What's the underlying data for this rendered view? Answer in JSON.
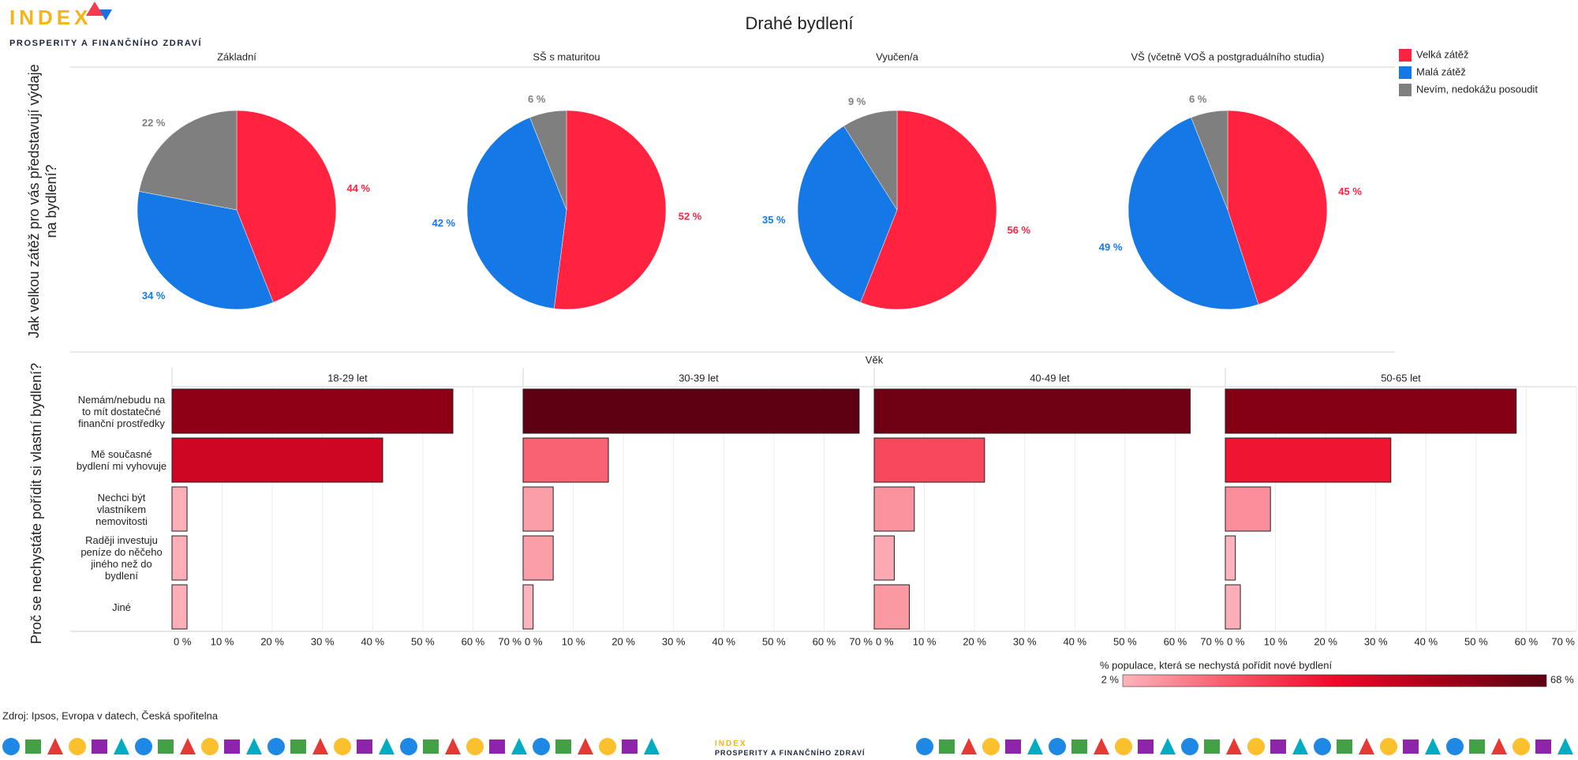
{
  "header": {
    "logo_title": "INDEX",
    "logo_subtitle": "PROSPERITY A FINANČNÍHO ZDRAVÍ",
    "title": "Drahé bydlení"
  },
  "chart_data": [
    {
      "type": "pie",
      "y_label": "Jak velkou zátěž pro vás představují výdaje na bydlení?",
      "legend": {
        "categories": [
          "Velká zátěž",
          "Malá zátěž",
          "Nevím, nedokážu posoudit"
        ],
        "colors": [
          "#ff2340",
          "#1479e6",
          "#7f7f7f"
        ]
      },
      "charts": [
        {
          "title": "Základní",
          "values": [
            44,
            34,
            22
          ],
          "value_labels": [
            "44 %",
            "34 %",
            "22 %"
          ]
        },
        {
          "title": "SŠ s maturitou",
          "values": [
            52,
            42,
            6
          ],
          "value_labels": [
            "52 %",
            "42 %",
            "6 %"
          ]
        },
        {
          "title": "Vyučen/a",
          "values": [
            56,
            35,
            9
          ],
          "value_labels": [
            "56 %",
            "35 %",
            "9 %"
          ]
        },
        {
          "title": "VŠ (včetně VOŠ a postgraduálního studia)",
          "values": [
            45,
            49,
            6
          ],
          "value_labels": [
            "45 %",
            "49 %",
            "6 %"
          ]
        }
      ]
    },
    {
      "type": "bar",
      "orientation": "horizontal",
      "y_label": "Proč se nechystáte pořídit si vlastní bydlení?",
      "group_title": "Věk",
      "categories": [
        "Nemám/nebudu na to mít dostatečné finanční prostředky",
        "Mě současné bydlení mi vyhovuje",
        "Nechci být vlastníkem nemovitosti",
        "Raději investuju peníze do něčeho jiného než do bydlení",
        "Jiné"
      ],
      "xlim": [
        0,
        70
      ],
      "xticks": [
        {
          "value": 0,
          "label": "0 %"
        },
        {
          "value": 10,
          "label": "10 %"
        },
        {
          "value": 20,
          "label": "20 %"
        },
        {
          "value": 30,
          "label": "30 %"
        },
        {
          "value": 40,
          "label": "40 %"
        },
        {
          "value": 50,
          "label": "50 %"
        },
        {
          "value": 60,
          "label": "60 %"
        },
        {
          "value": 70,
          "label": "70 %"
        }
      ],
      "grid": true,
      "panels": [
        {
          "title": "18-29 let",
          "values": [
            56,
            42,
            3,
            3,
            3
          ]
        },
        {
          "title": "30-39 let",
          "values": [
            67,
            17,
            6,
            6,
            2
          ]
        },
        {
          "title": "40-49 let",
          "values": [
            63,
            22,
            8,
            4,
            7
          ]
        },
        {
          "title": "50-65 let",
          "values": [
            58,
            33,
            9,
            2,
            3
          ]
        }
      ],
      "colorscale": {
        "title": "% populace, která se nechystá pořídit nové bydlení",
        "min": 2,
        "max": 68,
        "min_label": "2 %",
        "max_label": "68 %",
        "colors": [
          "#fdb4bc",
          "#f85a6b",
          "#ee0a2a",
          "#a30019",
          "#5a0010"
        ]
      }
    }
  ],
  "footer": {
    "source": "Zdroj: Ipsos, Evropa v datech, Česká spořitelna"
  }
}
